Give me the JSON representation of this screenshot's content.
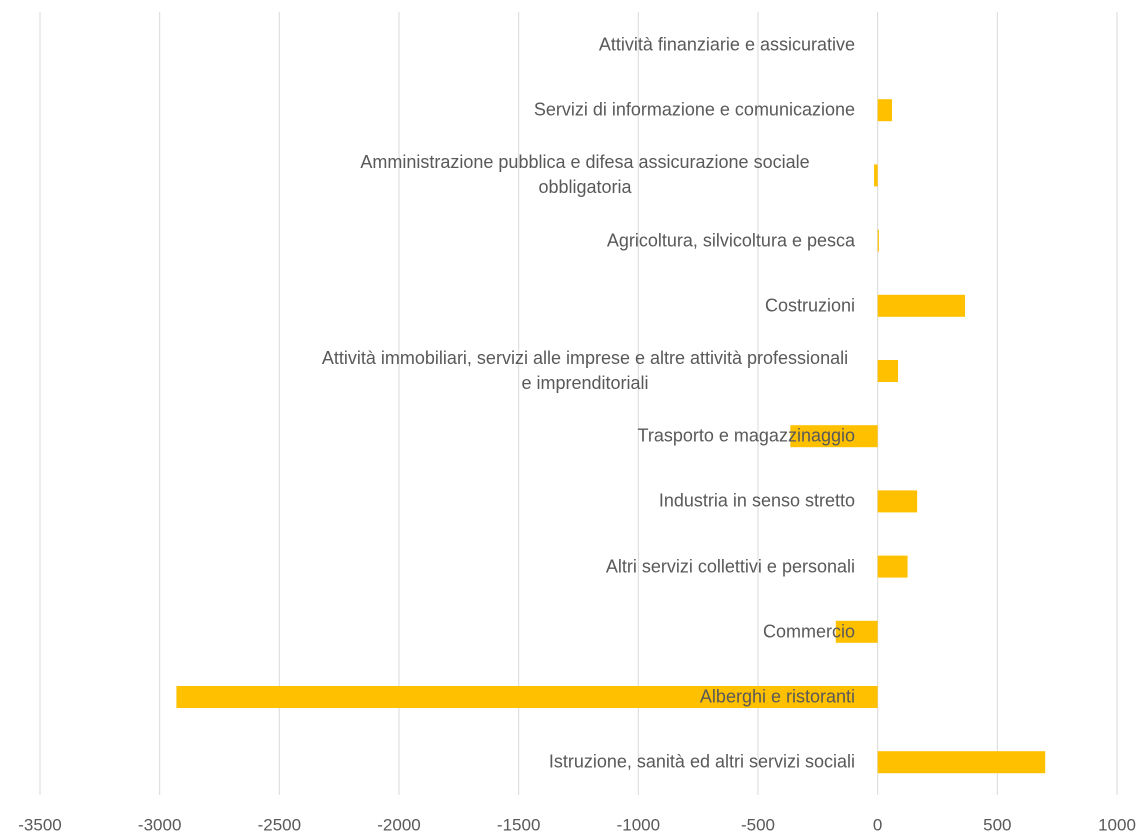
{
  "chart_data": {
    "type": "bar",
    "orientation": "horizontal",
    "categories": [
      "Attività finanziarie e assicurative",
      "Servizi di informazione e comunicazione",
      "Amministrazione pubblica e difesa assicurazione sociale obbligatoria",
      "Agricoltura, silvicoltura e pesca",
      "Costruzioni",
      "Attività immobiliari, servizi alle imprese e altre attività professionali e imprenditoriali",
      "Trasporto e magazzinaggio",
      "Industria in senso stretto",
      "Altri servizi collettivi e personali",
      "Commercio",
      "Alberghi e ristoranti",
      "Istruzione, sanità ed altri servizi sociali"
    ],
    "values": [
      0,
      60,
      -15,
      5,
      365,
      85,
      -365,
      165,
      125,
      -175,
      -2930,
      700
    ],
    "color": "#ffc000",
    "xlim": [
      -3500,
      1000
    ],
    "xticks": [
      -3500,
      -3000,
      -2500,
      -2000,
      -1500,
      -1000,
      -500,
      0,
      500,
      1000
    ],
    "grid": true
  }
}
